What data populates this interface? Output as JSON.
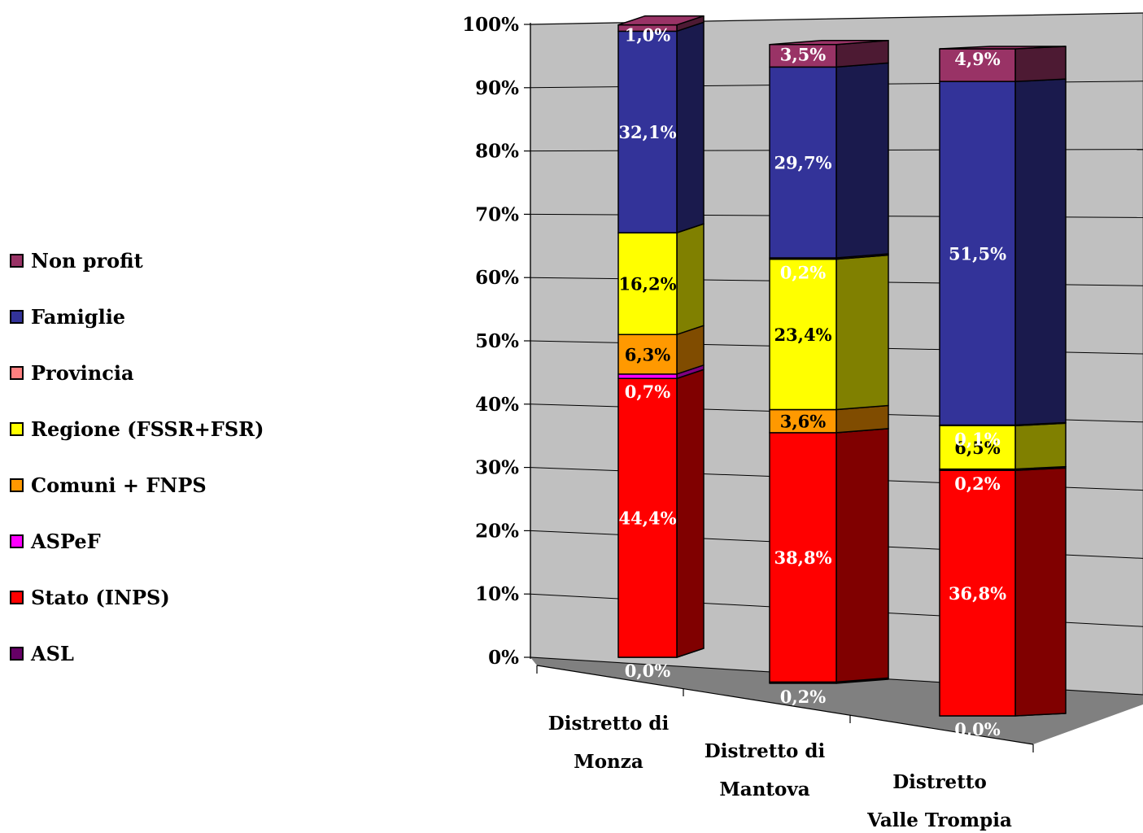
{
  "chart_data": {
    "type": "bar",
    "stacked": true,
    "percent": true,
    "style": "3d",
    "categories": [
      [
        "Distretto di",
        "Monza"
      ],
      [
        "Distretto di",
        "Mantova"
      ],
      [
        "Distretto",
        "Valle Trompia"
      ]
    ],
    "y_ticks": [
      "0%",
      "10%",
      "20%",
      "30%",
      "40%",
      "50%",
      "60%",
      "70%",
      "80%",
      "90%",
      "100%"
    ],
    "ylim": [
      0,
      100
    ],
    "grid": true,
    "legend_position": "left",
    "series": [
      {
        "name": "ASL",
        "color": "#660066",
        "side_color": "#330033",
        "label_color": "#ffffff",
        "values": [
          0.0,
          0.2,
          0.0
        ],
        "labels": [
          "0,0%",
          "0,2%",
          "0,0%"
        ]
      },
      {
        "name": "Stato (INPS)",
        "color": "#ff0000",
        "side_color": "#800000",
        "label_color": "#ffffff",
        "values": [
          44.4,
          38.8,
          36.8
        ],
        "labels": [
          "44,4%",
          "38,8%",
          "36,8%"
        ]
      },
      {
        "name": "ASPeF",
        "color": "#ff00ff",
        "side_color": "#800080",
        "label_color": "#ffffff",
        "values": [
          0.7,
          0.0,
          0.2
        ],
        "labels": [
          "0,7%",
          "",
          "0,2%"
        ]
      },
      {
        "name": "Comuni + FNPS",
        "color": "#ff9900",
        "side_color": "#804c00",
        "label_color": "#000000",
        "values": [
          6.3,
          3.6,
          0.0
        ],
        "labels": [
          "6,3%",
          "3,6%",
          ""
        ]
      },
      {
        "name": "Regione (FSSR+FSR)",
        "color": "#ffff00",
        "side_color": "#808000",
        "label_color": "#000000",
        "values": [
          16.2,
          23.4,
          6.5
        ],
        "labels": [
          "16,2%",
          "23,4%",
          "6,5%"
        ]
      },
      {
        "name": "Provincia",
        "color": "#ff8080",
        "side_color": "#804040",
        "label_color": "#ffffff",
        "values": [
          0.0,
          0.2,
          0.1
        ],
        "labels": [
          "",
          "0,2%",
          "0,1%"
        ]
      },
      {
        "name": "Famiglie",
        "color": "#333399",
        "side_color": "#1a1a4d",
        "label_color": "#ffffff",
        "values": [
          32.1,
          29.7,
          51.5
        ],
        "labels": [
          "32,1%",
          "29,7%",
          "51,5%"
        ]
      },
      {
        "name": "Non profit",
        "color": "#993366",
        "side_color": "#4d1a33",
        "label_color": "#ffffff",
        "values": [
          1.0,
          3.5,
          4.9
        ],
        "labels": [
          "1,0%",
          "3,5%",
          "4,9%"
        ]
      }
    ]
  }
}
